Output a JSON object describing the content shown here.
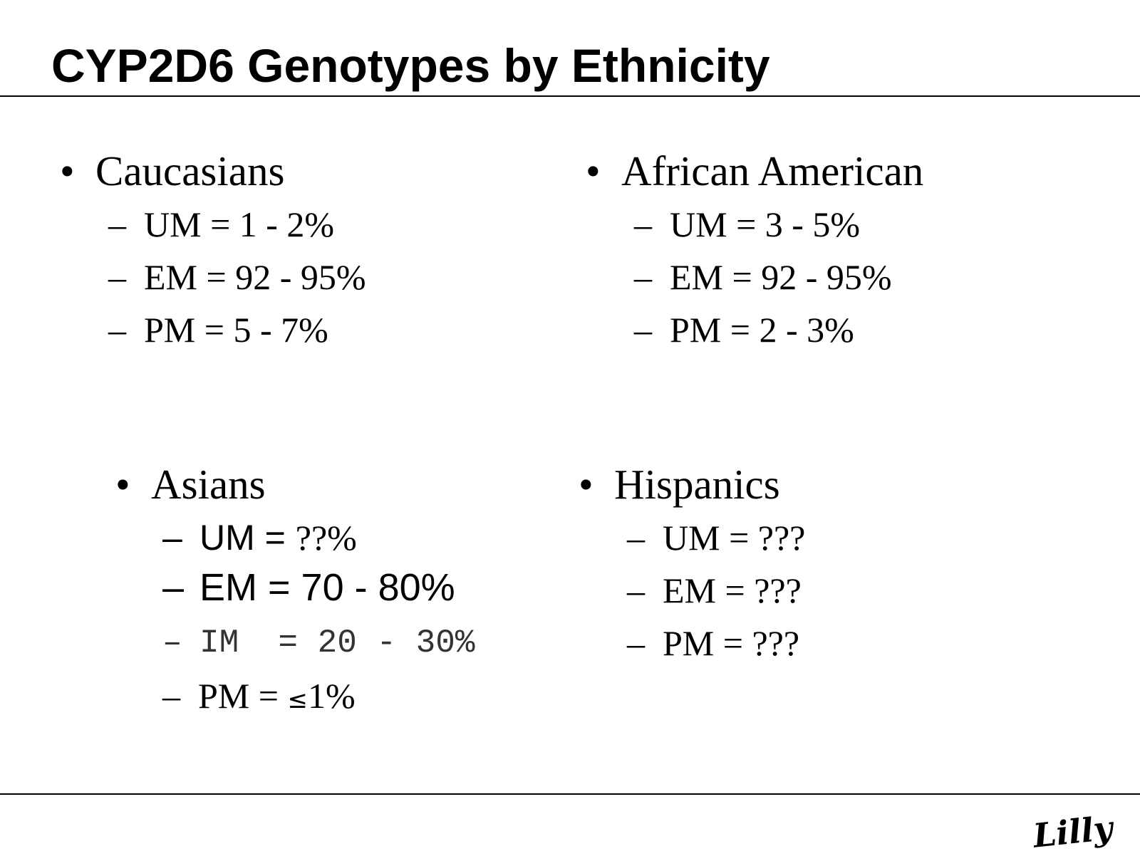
{
  "title": "CYP2D6 Genotypes by Ethnicity",
  "bullet_glyph": "•",
  "dash_glyph": "–",
  "groups": [
    {
      "heading": "Caucasians",
      "items": [
        "UM = 1 - 2%",
        "EM = 92 - 95%",
        "PM = 5 - 7%"
      ]
    },
    {
      "heading": "African American",
      "items": [
        "UM = 3 - 5%",
        "EM = 92 - 95%",
        "PM = 2 - 3%"
      ]
    },
    {
      "heading": "Asians",
      "items": [
        {
          "label": "UM = ",
          "value": "??%"
        },
        "EM = 70 - 80%",
        "IM  = 20 - 30%",
        {
          "label": "PM = ",
          "symbol": "≤",
          "value": "1%"
        }
      ]
    },
    {
      "heading": "Hispanics",
      "items": [
        "UM = ???",
        "EM = ???",
        "PM = ???"
      ]
    }
  ],
  "logo_text": "Lilly"
}
